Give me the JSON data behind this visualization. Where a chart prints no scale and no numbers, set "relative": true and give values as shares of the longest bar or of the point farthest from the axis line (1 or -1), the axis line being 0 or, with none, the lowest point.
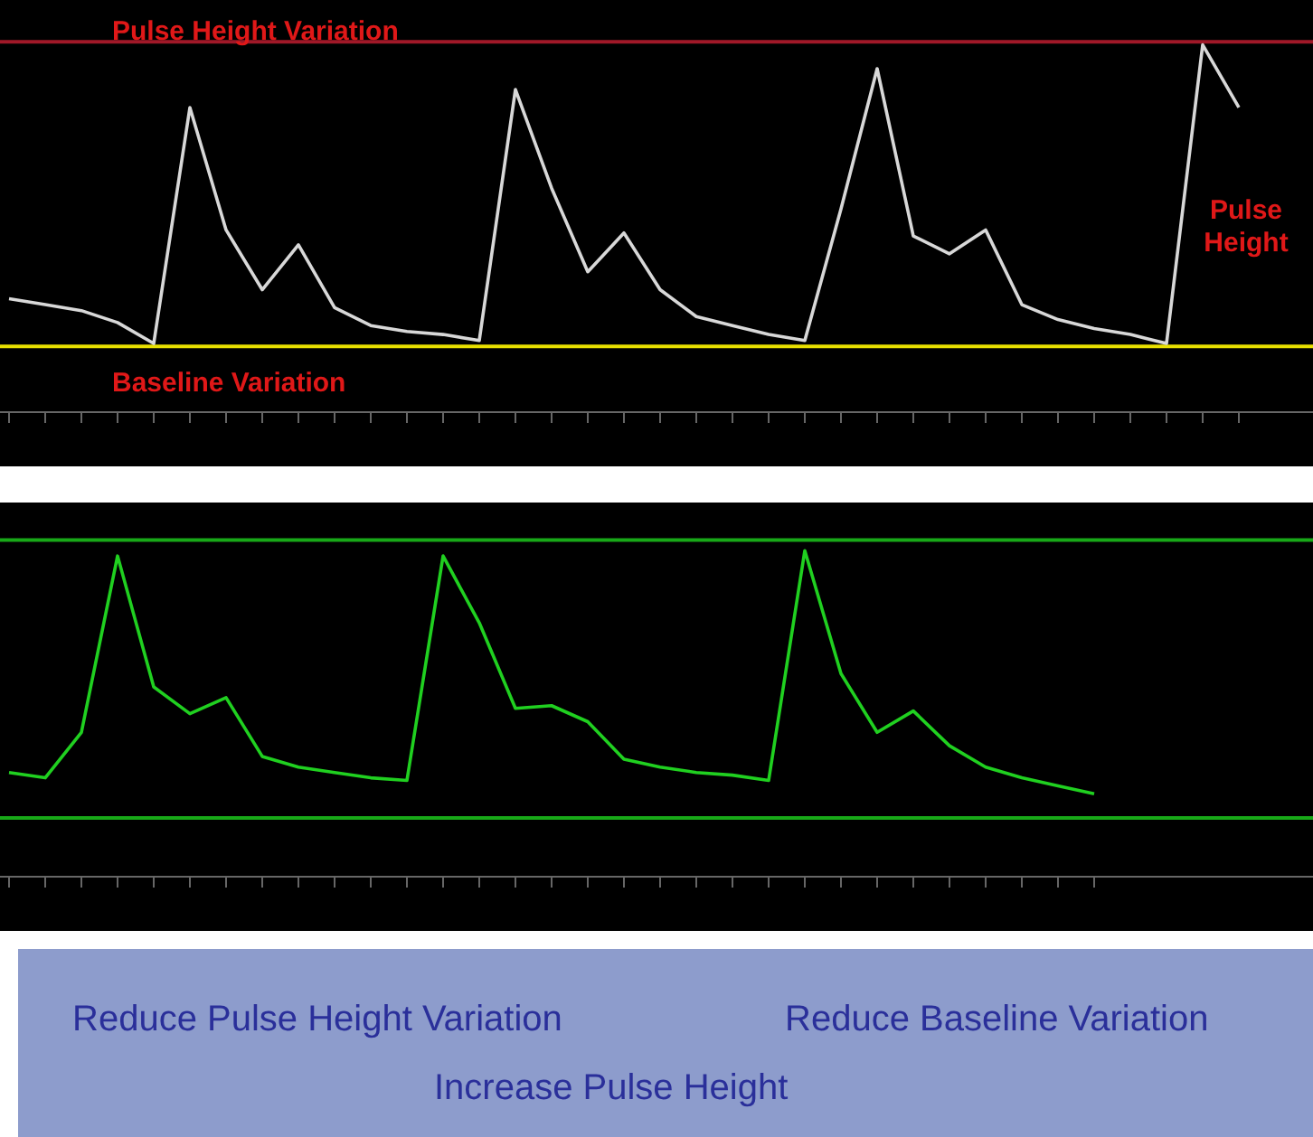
{
  "chart_data": [
    {
      "type": "line",
      "relative": true,
      "categories": [
        null,
        null,
        null,
        null,
        null,
        null,
        null,
        null,
        null,
        null,
        null,
        null,
        null,
        null,
        null,
        null,
        null,
        null,
        null,
        null,
        null,
        null,
        null,
        null,
        null,
        null,
        null,
        null,
        null,
        null,
        null,
        null,
        null,
        null,
        null
      ],
      "series": [
        {
          "color": "#d8d8d8",
          "values": [
            0.15,
            0.13,
            0.11,
            0.07,
            0,
            0.79,
            0.38,
            0.18,
            0.33,
            0.12,
            0.06,
            0.04,
            0.03,
            0.01,
            0.85,
            0.52,
            0.24,
            0.37,
            0.18,
            0.09,
            0.06,
            0.03,
            0.01,
            0.45,
            0.92,
            0.36,
            0.3,
            0.38,
            0.13,
            0.08,
            0.05,
            0.03,
            0,
            1,
            0.79
          ]
        }
      ],
      "ref_lines": [
        {
          "axis": "y",
          "value": 1.01,
          "label": "Pulse Height Variation",
          "color": "#a01828"
        },
        {
          "axis": "y",
          "value": -0.01,
          "label": "Baseline Variation",
          "color": "#e8e000"
        }
      ],
      "annotations": [
        "Pulse Height"
      ]
    },
    {
      "type": "line",
      "relative": true,
      "categories": [
        null,
        null,
        null,
        null,
        null,
        null,
        null,
        null,
        null,
        null,
        null,
        null,
        null,
        null,
        null,
        null,
        null,
        null,
        null,
        null,
        null,
        null,
        null,
        null,
        null,
        null,
        null,
        null,
        null,
        null,
        null
      ],
      "series": [
        {
          "color": "#20d020",
          "values": [
            0.17,
            0.15,
            0.32,
            0.98,
            0.49,
            0.39,
            0.45,
            0.23,
            0.19,
            0.17,
            0.15,
            0.14,
            0.98,
            0.73,
            0.41,
            0.42,
            0.36,
            0.22,
            0.19,
            0.17,
            0.16,
            0.14,
            1,
            0.54,
            0.32,
            0.4,
            0.27,
            0.19,
            0.15,
            0.12,
            0.09
          ]
        }
      ],
      "ref_lines": [
        {
          "axis": "y",
          "value": 1.04,
          "color": "#18a818"
        },
        {
          "axis": "y",
          "value": 0,
          "color": "#18a818"
        }
      ]
    },
    {
      "type": "other",
      "annotations": [
        "Reduce Pulse Height Variation",
        "Reduce Baseline Variation",
        "Increase Pulse Height"
      ]
    }
  ]
}
